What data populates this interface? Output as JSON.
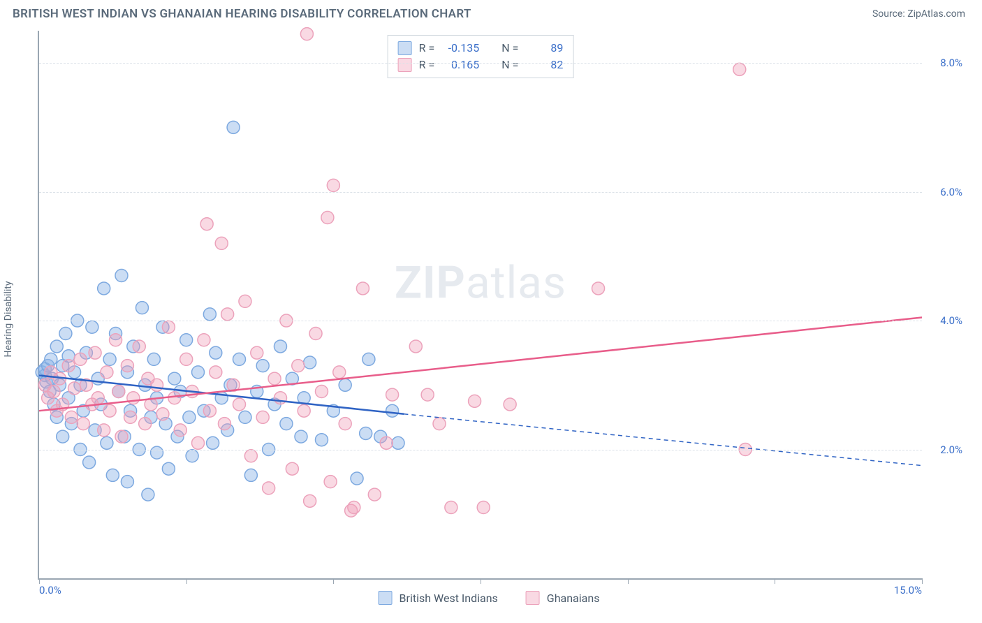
{
  "header": {
    "title": "BRITISH WEST INDIAN VS GHANAIAN HEARING DISABILITY CORRELATION CHART",
    "source_prefix": "Source: ",
    "source_link": "ZipAtlas.com"
  },
  "chart": {
    "type": "scatter",
    "ylabel": "Hearing Disability",
    "xlim": [
      0,
      15
    ],
    "ylim": [
      0,
      8.5
    ],
    "yticks": [
      2.0,
      4.0,
      6.0,
      8.0
    ],
    "ytick_labels": [
      "2.0%",
      "4.0%",
      "6.0%",
      "8.0%"
    ],
    "xticks": [
      0,
      2.5,
      5.0,
      7.5,
      10.0,
      12.5,
      15.0
    ],
    "xtick_labels_shown": {
      "0": "0.0%",
      "15": "15.0%"
    },
    "background_color": "#ffffff",
    "grid_color": "#dce2e8",
    "axis_color": "#9aa6b2",
    "marker_radius": 9,
    "marker_stroke_width": 1.5,
    "line_width": 2.5,
    "series": [
      {
        "name": "British West Indians",
        "fill": "rgba(140,180,230,0.45)",
        "stroke": "#7da9e0",
        "line_color": "#2f63c4",
        "R": "-0.135",
        "N": "89",
        "trend": {
          "x1": 0.0,
          "y1": 3.15,
          "x2": 6.2,
          "y2": 2.55,
          "x2_dash": 15.0,
          "y2_dash": 1.75
        },
        "points": [
          [
            0.05,
            3.2
          ],
          [
            0.1,
            3.15
          ],
          [
            0.1,
            3.25
          ],
          [
            0.12,
            3.05
          ],
          [
            0.15,
            3.3
          ],
          [
            0.18,
            2.9
          ],
          [
            0.2,
            3.4
          ],
          [
            0.22,
            3.1
          ],
          [
            0.25,
            2.7
          ],
          [
            0.3,
            3.6
          ],
          [
            0.3,
            2.5
          ],
          [
            0.35,
            3.0
          ],
          [
            0.4,
            3.3
          ],
          [
            0.4,
            2.2
          ],
          [
            0.45,
            3.8
          ],
          [
            0.5,
            2.8
          ],
          [
            0.5,
            3.45
          ],
          [
            0.55,
            2.4
          ],
          [
            0.6,
            3.2
          ],
          [
            0.65,
            4.0
          ],
          [
            0.7,
            2.0
          ],
          [
            0.7,
            3.0
          ],
          [
            0.75,
            2.6
          ],
          [
            0.8,
            3.5
          ],
          [
            0.85,
            1.8
          ],
          [
            0.9,
            3.9
          ],
          [
            0.95,
            2.3
          ],
          [
            1.0,
            3.1
          ],
          [
            1.05,
            2.7
          ],
          [
            1.1,
            4.5
          ],
          [
            1.15,
            2.1
          ],
          [
            1.2,
            3.4
          ],
          [
            1.25,
            1.6
          ],
          [
            1.3,
            3.8
          ],
          [
            1.35,
            2.9
          ],
          [
            1.4,
            4.7
          ],
          [
            1.45,
            2.2
          ],
          [
            1.5,
            3.2
          ],
          [
            1.5,
            1.5
          ],
          [
            1.55,
            2.6
          ],
          [
            1.6,
            3.6
          ],
          [
            1.7,
            2.0
          ],
          [
            1.75,
            4.2
          ],
          [
            1.8,
            3.0
          ],
          [
            1.85,
            1.3
          ],
          [
            1.9,
            2.5
          ],
          [
            1.95,
            3.4
          ],
          [
            2.0,
            2.8
          ],
          [
            2.0,
            1.95
          ],
          [
            2.1,
            3.9
          ],
          [
            2.15,
            2.4
          ],
          [
            2.2,
            1.7
          ],
          [
            2.3,
            3.1
          ],
          [
            2.35,
            2.2
          ],
          [
            2.4,
            2.9
          ],
          [
            2.5,
            3.7
          ],
          [
            2.55,
            2.5
          ],
          [
            2.6,
            1.9
          ],
          [
            2.7,
            3.2
          ],
          [
            2.8,
            2.6
          ],
          [
            2.9,
            4.1
          ],
          [
            2.95,
            2.1
          ],
          [
            3.0,
            3.5
          ],
          [
            3.1,
            2.8
          ],
          [
            3.2,
            2.3
          ],
          [
            3.25,
            3.0
          ],
          [
            3.3,
            7.0
          ],
          [
            3.4,
            3.4
          ],
          [
            3.5,
            2.5
          ],
          [
            3.6,
            1.6
          ],
          [
            3.7,
            2.9
          ],
          [
            3.8,
            3.3
          ],
          [
            3.9,
            2.0
          ],
          [
            4.0,
            2.7
          ],
          [
            4.1,
            3.6
          ],
          [
            4.2,
            2.4
          ],
          [
            4.3,
            3.1
          ],
          [
            4.45,
            2.2
          ],
          [
            4.5,
            2.8
          ],
          [
            4.6,
            3.35
          ],
          [
            4.8,
            2.15
          ],
          [
            5.0,
            2.6
          ],
          [
            5.2,
            3.0
          ],
          [
            5.4,
            1.55
          ],
          [
            5.55,
            2.25
          ],
          [
            5.6,
            3.4
          ],
          [
            5.8,
            2.2
          ],
          [
            6.0,
            2.6
          ],
          [
            6.1,
            2.1
          ]
        ]
      },
      {
        "name": "Ghanaians",
        "fill": "rgba(240,160,185,0.40)",
        "stroke": "#eca2bb",
        "line_color": "#e85d8a",
        "R": "0.165",
        "N": "82",
        "trend": {
          "x1": 0.0,
          "y1": 2.6,
          "x2": 15.0,
          "y2": 4.05
        },
        "points": [
          [
            0.1,
            3.0
          ],
          [
            0.15,
            2.8
          ],
          [
            0.2,
            3.2
          ],
          [
            0.25,
            2.9
          ],
          [
            0.3,
            2.6
          ],
          [
            0.35,
            3.1
          ],
          [
            0.4,
            2.7
          ],
          [
            0.5,
            3.3
          ],
          [
            0.55,
            2.5
          ],
          [
            0.6,
            2.95
          ],
          [
            0.7,
            3.4
          ],
          [
            0.75,
            2.4
          ],
          [
            0.8,
            3.0
          ],
          [
            0.9,
            2.7
          ],
          [
            0.95,
            3.5
          ],
          [
            1.0,
            2.8
          ],
          [
            1.1,
            2.3
          ],
          [
            1.15,
            3.2
          ],
          [
            1.2,
            2.6
          ],
          [
            1.3,
            3.7
          ],
          [
            1.35,
            2.9
          ],
          [
            1.4,
            2.2
          ],
          [
            1.5,
            3.3
          ],
          [
            1.55,
            2.5
          ],
          [
            1.6,
            2.8
          ],
          [
            1.7,
            3.6
          ],
          [
            1.8,
            2.4
          ],
          [
            1.85,
            3.1
          ],
          [
            1.9,
            2.7
          ],
          [
            2.0,
            3.0
          ],
          [
            2.1,
            2.55
          ],
          [
            2.2,
            3.9
          ],
          [
            2.3,
            2.8
          ],
          [
            2.4,
            2.3
          ],
          [
            2.5,
            3.4
          ],
          [
            2.6,
            2.9
          ],
          [
            2.7,
            2.1
          ],
          [
            2.8,
            3.7
          ],
          [
            2.85,
            5.5
          ],
          [
            2.9,
            2.6
          ],
          [
            3.0,
            3.2
          ],
          [
            3.1,
            5.2
          ],
          [
            3.15,
            2.4
          ],
          [
            3.2,
            4.1
          ],
          [
            3.3,
            3.0
          ],
          [
            3.4,
            2.7
          ],
          [
            3.5,
            4.3
          ],
          [
            3.6,
            1.9
          ],
          [
            3.7,
            3.5
          ],
          [
            3.8,
            2.5
          ],
          [
            3.9,
            1.4
          ],
          [
            4.0,
            3.1
          ],
          [
            4.1,
            2.8
          ],
          [
            4.2,
            4.0
          ],
          [
            4.3,
            1.7
          ],
          [
            4.4,
            3.3
          ],
          [
            4.5,
            2.6
          ],
          [
            4.55,
            8.45
          ],
          [
            4.6,
            1.2
          ],
          [
            4.7,
            3.8
          ],
          [
            4.8,
            2.9
          ],
          [
            4.9,
            5.6
          ],
          [
            4.95,
            1.5
          ],
          [
            5.0,
            6.1
          ],
          [
            5.1,
            3.2
          ],
          [
            5.2,
            2.4
          ],
          [
            5.3,
            1.05
          ],
          [
            5.35,
            1.1
          ],
          [
            5.5,
            4.5
          ],
          [
            5.7,
            1.3
          ],
          [
            5.9,
            2.1
          ],
          [
            6.0,
            2.85
          ],
          [
            6.4,
            3.6
          ],
          [
            6.6,
            2.85
          ],
          [
            6.8,
            2.4
          ],
          [
            7.0,
            1.1
          ],
          [
            7.4,
            2.75
          ],
          [
            7.55,
            1.1
          ],
          [
            8.0,
            2.7
          ],
          [
            9.5,
            4.5
          ],
          [
            11.9,
            7.9
          ],
          [
            12.0,
            2.0
          ]
        ]
      }
    ],
    "watermark": {
      "part1": "ZIP",
      "part2": "atlas"
    }
  },
  "stats_box": {
    "R_label": "R =",
    "N_label": "N ="
  },
  "colors": {
    "text_muted": "#5a6a7a",
    "text_value": "#3b6fc9"
  }
}
